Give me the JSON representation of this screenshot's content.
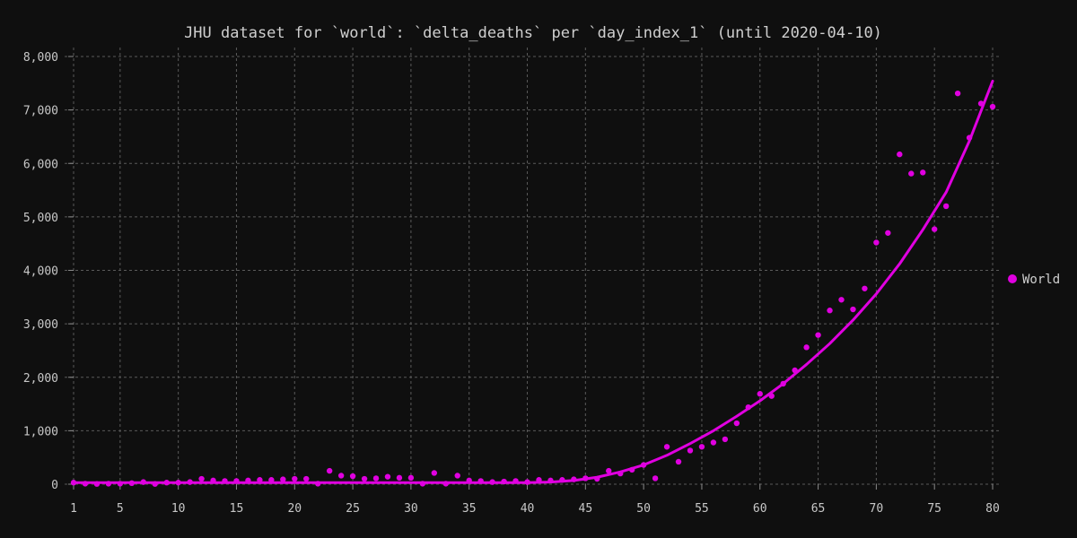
{
  "chart_data": {
    "type": "scatter",
    "title": "JHU dataset for `world`: `delta_deaths` per `day_index_1` (until 2020-04-10)",
    "xlabel": "",
    "ylabel": "",
    "xlim": [
      1,
      80
    ],
    "ylim": [
      0,
      8000
    ],
    "x_ticks": [
      1,
      5,
      10,
      15,
      20,
      25,
      30,
      35,
      40,
      45,
      50,
      55,
      60,
      65,
      70,
      75,
      80
    ],
    "y_ticks": [
      0,
      1000,
      2000,
      3000,
      4000,
      5000,
      6000,
      7000,
      8000
    ],
    "x_tick_labels": [
      "1",
      "5",
      "10",
      "15",
      "20",
      "25",
      "30",
      "35",
      "40",
      "45",
      "50",
      "55",
      "60",
      "65",
      "70",
      "75",
      "80"
    ],
    "y_tick_labels": [
      "0",
      "1,000",
      "2,000",
      "3,000",
      "4,000",
      "5,000",
      "6,000",
      "7,000",
      "8,000"
    ],
    "grid": true,
    "legend_position": "right",
    "series": [
      {
        "name": "World",
        "color": "#e000e0",
        "points": [
          [
            1,
            30
          ],
          [
            2,
            10
          ],
          [
            3,
            5
          ],
          [
            4,
            10
          ],
          [
            5,
            10
          ],
          [
            6,
            20
          ],
          [
            7,
            40
          ],
          [
            8,
            5
          ],
          [
            9,
            30
          ],
          [
            10,
            30
          ],
          [
            11,
            40
          ],
          [
            12,
            100
          ],
          [
            13,
            70
          ],
          [
            14,
            60
          ],
          [
            15,
            60
          ],
          [
            16,
            70
          ],
          [
            17,
            80
          ],
          [
            18,
            80
          ],
          [
            19,
            90
          ],
          [
            20,
            100
          ],
          [
            21,
            100
          ],
          [
            22,
            10
          ],
          [
            23,
            250
          ],
          [
            24,
            160
          ],
          [
            25,
            150
          ],
          [
            26,
            100
          ],
          [
            27,
            110
          ],
          [
            28,
            140
          ],
          [
            29,
            120
          ],
          [
            30,
            120
          ],
          [
            31,
            10
          ],
          [
            32,
            210
          ],
          [
            33,
            10
          ],
          [
            34,
            160
          ],
          [
            35,
            70
          ],
          [
            36,
            60
          ],
          [
            37,
            40
          ],
          [
            38,
            50
          ],
          [
            39,
            60
          ],
          [
            40,
            40
          ],
          [
            41,
            80
          ],
          [
            42,
            70
          ],
          [
            43,
            80
          ],
          [
            44,
            90
          ],
          [
            45,
            110
          ],
          [
            46,
            100
          ],
          [
            47,
            250
          ],
          [
            48,
            200
          ],
          [
            49,
            270
          ],
          [
            50,
            360
          ],
          [
            51,
            110
          ],
          [
            52,
            700
          ],
          [
            53,
            420
          ],
          [
            54,
            630
          ],
          [
            55,
            700
          ],
          [
            56,
            780
          ],
          [
            57,
            840
          ],
          [
            58,
            1140
          ],
          [
            59,
            1440
          ],
          [
            60,
            1690
          ],
          [
            61,
            1650
          ],
          [
            62,
            1880
          ],
          [
            63,
            2130
          ],
          [
            64,
            2560
          ],
          [
            65,
            2790
          ],
          [
            66,
            3250
          ],
          [
            67,
            3450
          ],
          [
            68,
            3270
          ],
          [
            69,
            3660
          ],
          [
            70,
            4520
          ],
          [
            71,
            4700
          ],
          [
            72,
            6170
          ],
          [
            73,
            5810
          ],
          [
            74,
            5830
          ],
          [
            75,
            4770
          ],
          [
            76,
            5200
          ],
          [
            77,
            7310
          ],
          [
            78,
            6480
          ],
          [
            79,
            7120
          ],
          [
            80,
            7060
          ]
        ]
      }
    ],
    "fit_curve": {
      "color": "#e000e0",
      "points": [
        [
          1,
          30
        ],
        [
          40,
          30
        ],
        [
          42,
          40
        ],
        [
          44,
          70
        ],
        [
          46,
          130
        ],
        [
          48,
          230
        ],
        [
          50,
          360
        ],
        [
          52,
          540
        ],
        [
          54,
          760
        ],
        [
          56,
          1000
        ],
        [
          58,
          1270
        ],
        [
          60,
          1560
        ],
        [
          62,
          1880
        ],
        [
          64,
          2240
        ],
        [
          66,
          2630
        ],
        [
          68,
          3070
        ],
        [
          70,
          3560
        ],
        [
          72,
          4120
        ],
        [
          74,
          4760
        ],
        [
          76,
          5460
        ],
        [
          78,
          6420
        ],
        [
          80,
          7540
        ]
      ]
    }
  },
  "legend": {
    "label": "World",
    "color": "#e000e0"
  }
}
